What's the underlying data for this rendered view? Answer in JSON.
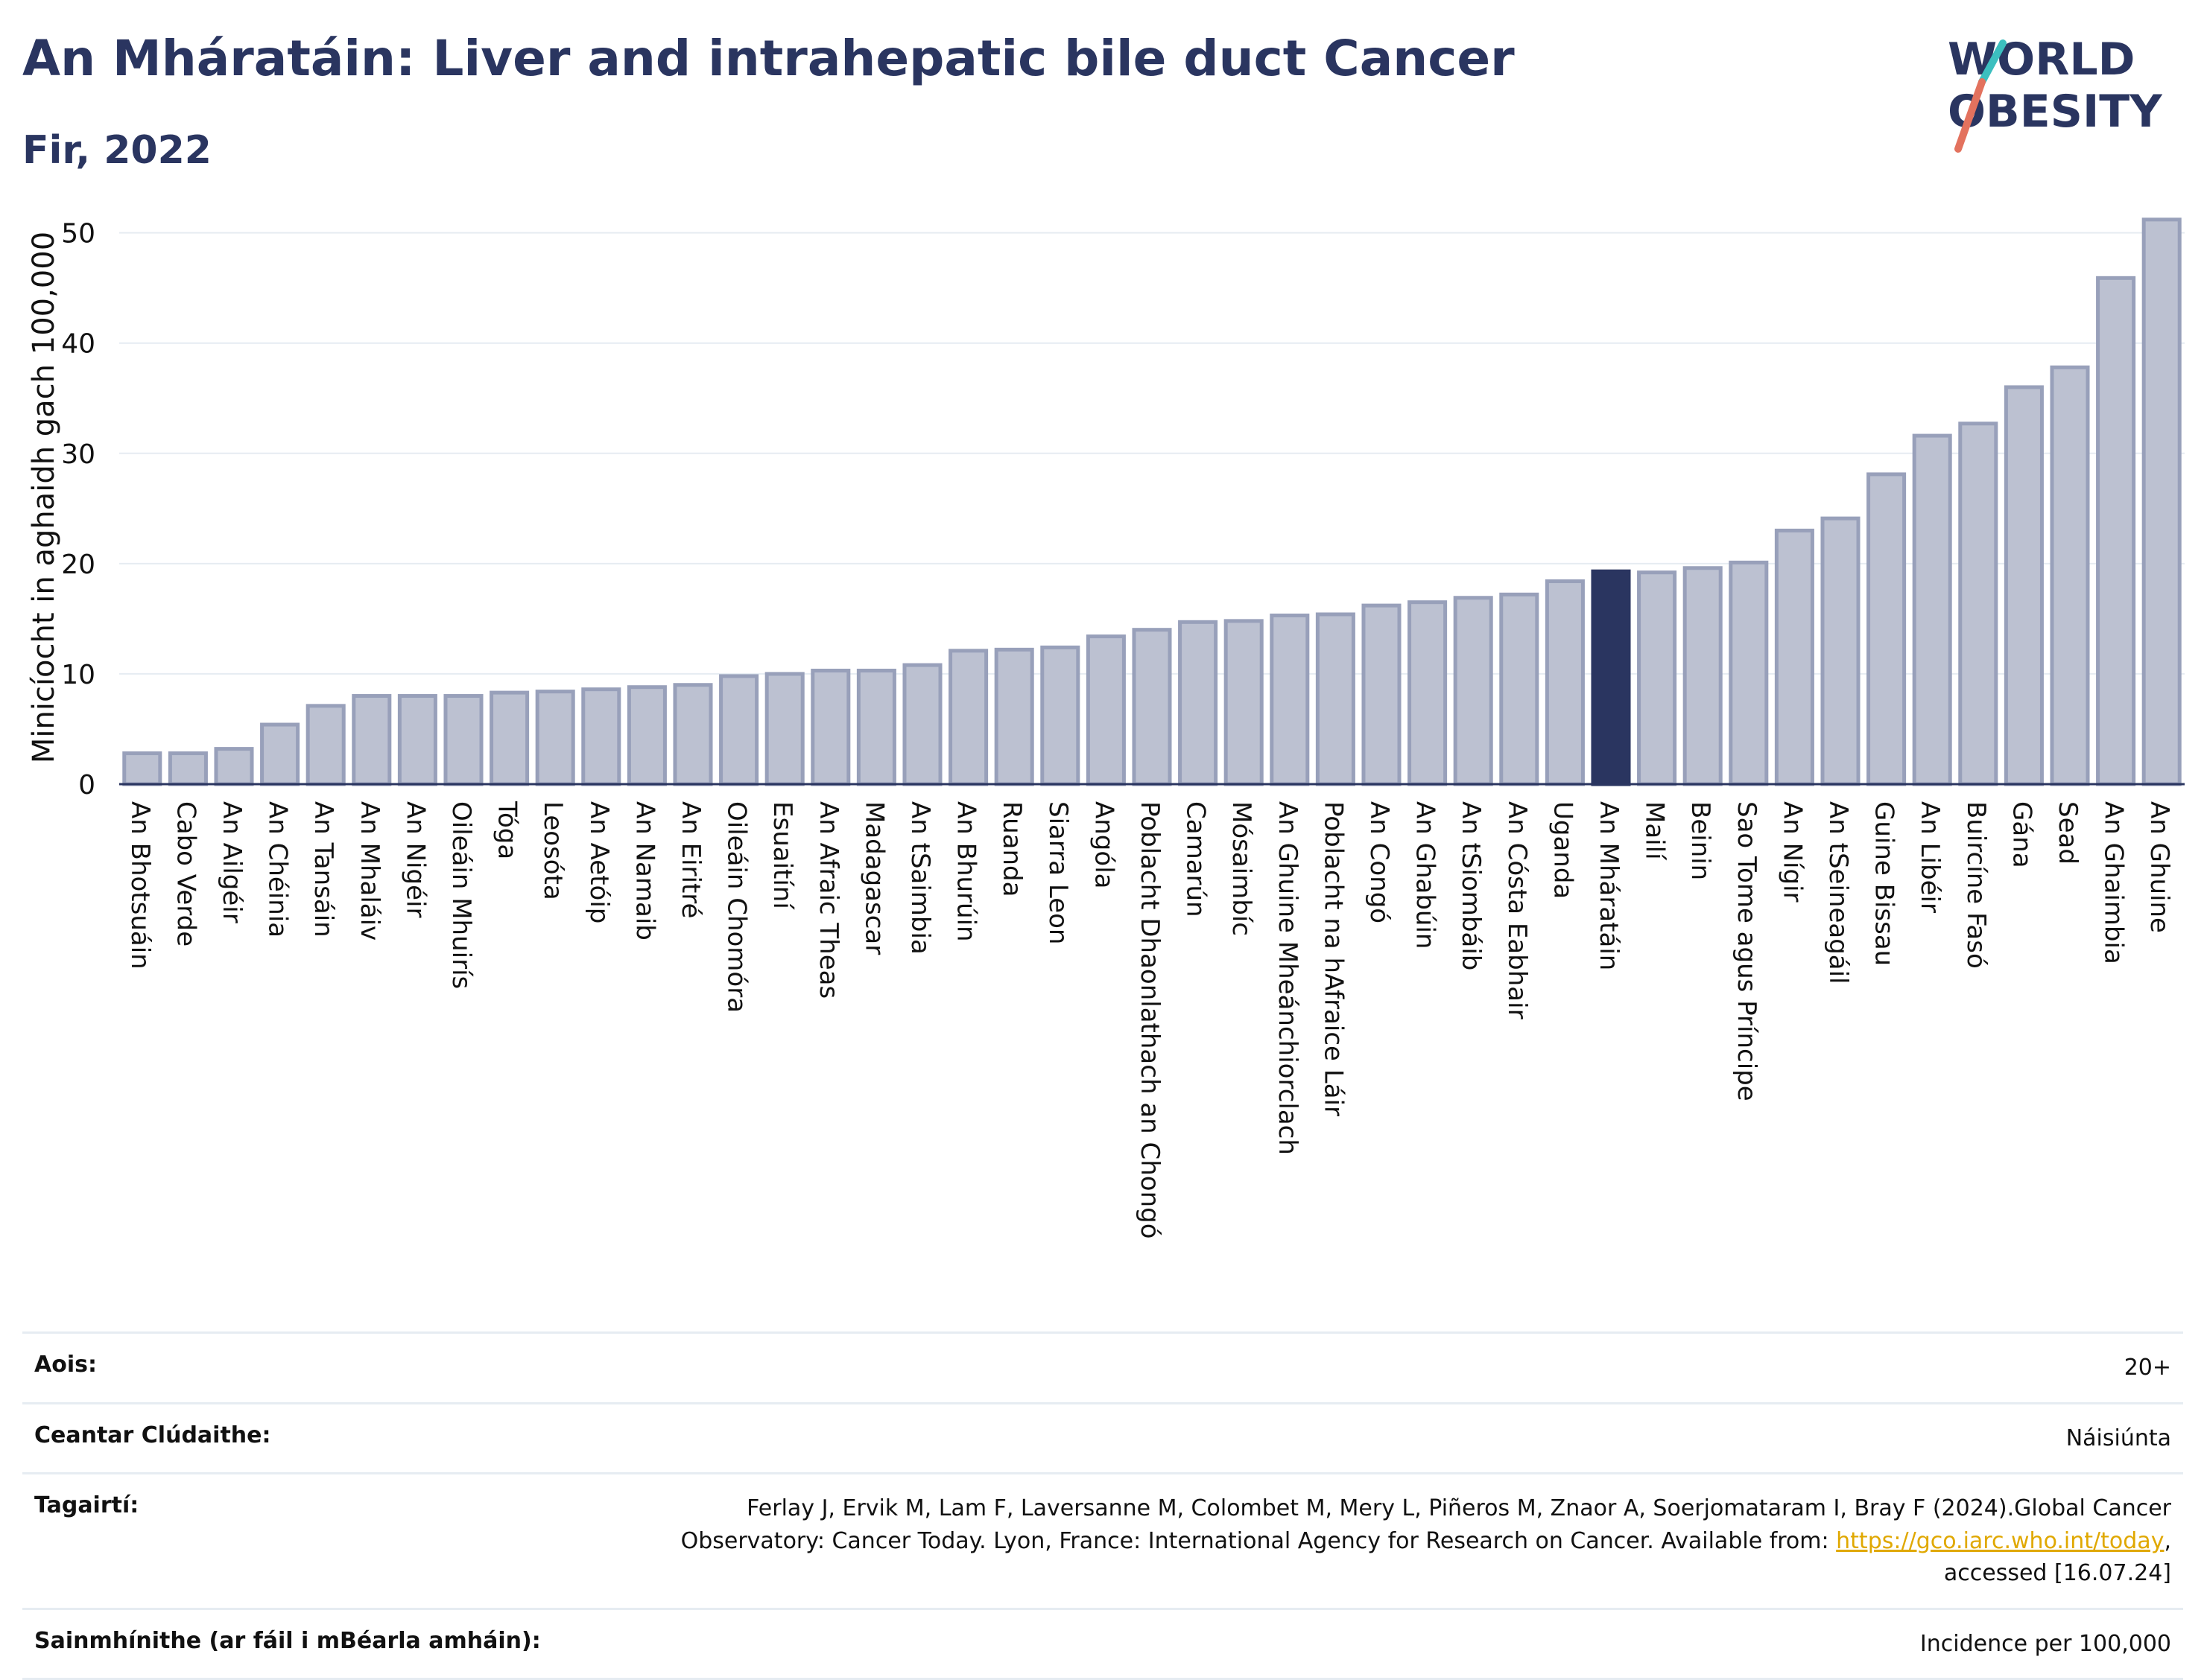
{
  "header": {
    "title": "An Mháratáin: Liver and intrahepatic bile duct Cancer",
    "subtitle": "Fir, 2022"
  },
  "logo": {
    "line1": "WORLD",
    "line2": "OBESITY"
  },
  "colors": {
    "bar": "#bcc1d1",
    "bar_edge": "#98a0ba",
    "highlight": "#2a3560",
    "text": "#2a3560",
    "grid": "#e6ecf2"
  },
  "chart_data": {
    "type": "bar",
    "title": "An Mháratáin: Liver and intrahepatic bile duct Cancer",
    "subtitle": "Fir, 2022",
    "xlabel": "",
    "ylabel": "Minicíocht in aghaidh gach 100,000",
    "ylim": [
      0,
      52
    ],
    "yticks": [
      0,
      10,
      20,
      30,
      40,
      50
    ],
    "grid": true,
    "highlight": "An Mháratáin",
    "categories": [
      "An Bhotsuáin",
      "Cabo Verde",
      "An Ailgéir",
      "An Chéinia",
      "An Tansáin",
      "An Mhaláiv",
      "An Nigéir",
      "Oileáin Mhuirís",
      "Tóga",
      "Leosóta",
      "An Aetóip",
      "An Namaib",
      "An Eiritré",
      "Oileáin Chomóra",
      "Esuaitíní",
      "An Afraic Theas",
      "Madagascar",
      "An tSaimbia",
      "An Bhurúin",
      "Ruanda",
      "Siarra Leon",
      "Angóla",
      "Poblacht Dhaonlathach an Chongó",
      "Camarún",
      "Mósaimbíc",
      "An Ghuine Mheánchiorclach",
      "Poblacht na hAfraice Láir",
      "An Congó",
      "An Ghabúin",
      "An tSiombáib",
      "An Cósta Eabhair",
      "Uganda",
      "An Mháratáin",
      "Mailí",
      "Beinin",
      "Sao Tome agus Príncipe",
      "An Nígir",
      "An tSeineagáil",
      "Guine Bissau",
      "An Libéir",
      "Buircíne Fasó",
      "Gána",
      "Sead",
      "An Ghaimbia",
      "An Ghuine"
    ],
    "values": [
      2.8,
      2.8,
      3.2,
      5.4,
      7.1,
      8.0,
      8.0,
      8.0,
      8.3,
      8.4,
      8.6,
      8.8,
      9.0,
      9.8,
      10.0,
      10.3,
      10.3,
      10.8,
      12.1,
      12.2,
      12.4,
      13.4,
      14.0,
      14.7,
      14.8,
      15.3,
      15.4,
      16.2,
      16.5,
      16.9,
      17.2,
      18.4,
      19.3,
      19.2,
      19.6,
      20.1,
      23.0,
      24.1,
      28.1,
      31.6,
      32.7,
      36.0,
      37.8,
      45.9,
      51.2
    ]
  },
  "meta": [
    {
      "label": "Aois:",
      "value": "20+"
    },
    {
      "label": "Ceantar Clúdaithe:",
      "value": "Náisiúnta"
    },
    {
      "label": "Tagairtí:",
      "value_pre": "Ferlay J, Ervik M, Lam F, Laversanne M, Colombet M, Mery L, Piñeros M, Znaor A, Soerjomataram I, Bray F (2024).Global Cancer Observatory: Cancer Today. Lyon, France: International Agency for Research on Cancer. Available from: ",
      "link": "https://gco.iarc.who.int/today",
      "value_post": ", accessed [16.07.24]"
    },
    {
      "label": "Sainmhínithe (ar fáil i mBéarla amháin):",
      "value": "Incidence per 100,000"
    }
  ]
}
